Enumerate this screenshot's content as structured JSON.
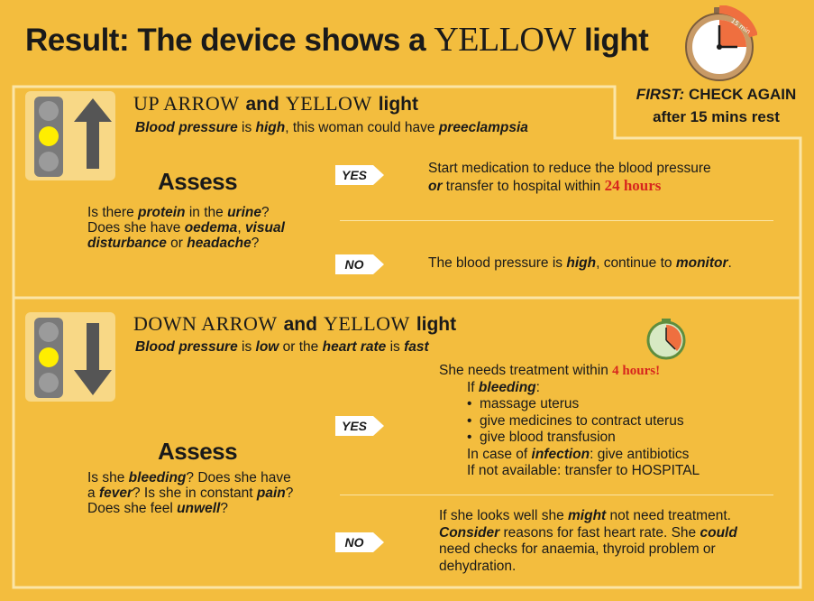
{
  "title": {
    "lead": "Result: The device shows a",
    "color_word": "YELLOW",
    "tail": "light"
  },
  "first_note": {
    "label": "FIRST:",
    "line1": "CHECK AGAIN",
    "line2": "after 15 mins rest"
  },
  "timer_15": {
    "mark": "15 min"
  },
  "colors": {
    "background": "#f3bd3e",
    "panel_light": "#f8d886",
    "light_yellow": "#ffee00",
    "light_gray": "#7a7a7a",
    "highlight_red": "#d7261e",
    "clock_orange": "#ef6f3f",
    "clock_green": "#5f8d3e"
  },
  "up": {
    "heading": {
      "arrow_word": "UP ARROW",
      "and": "and",
      "color_word": "YELLOW",
      "light": "light"
    },
    "subline": {
      "p1": "Blood pressure",
      "p2": " is ",
      "p3": "high",
      "p4": ", this woman could have ",
      "p5": "preeclampsia"
    },
    "assess": "Assess",
    "question": {
      "a1": "Is there ",
      "a2": "protein",
      "a3": " in the ",
      "a4": "urine",
      "a5": "?",
      "b1": "Does she have ",
      "b2": "oedema",
      "b3": ", ",
      "b4": "visual",
      "c1": "disturbance",
      "c2": " or ",
      "c3": "headache",
      "c4": "?"
    },
    "yes_label": "YES",
    "yes": {
      "l1": "Start medication to reduce the blood pressure",
      "or": "or",
      "l2": " transfer to hospital within ",
      "hours": "24 hours"
    },
    "no_label": "NO",
    "no": {
      "p1": "The blood pressure is ",
      "high": "high",
      "p2": ", continue to ",
      "monitor": "monitor",
      "p3": "."
    }
  },
  "down": {
    "heading": {
      "arrow_word": "DOWN ARROW",
      "and": "and",
      "color_word": "YELLOW",
      "light": "light"
    },
    "subline": {
      "p1": "Blood pressure",
      "p2": " is ",
      "p3": "low",
      "p4": " or the ",
      "p5": "heart rate",
      "p6": " is ",
      "p7": "fast"
    },
    "assess": "Assess",
    "question": {
      "a1": "Is she ",
      "a2": "bleeding",
      "a3": "? Does she have",
      "b1": "a ",
      "b2": "fever",
      "b3": "? Is she in constant ",
      "b4": "pain",
      "b5": "?",
      "c1": "Does she feel ",
      "c2": "unwell",
      "c3": "?"
    },
    "yes_label": "YES",
    "yes": {
      "intro": "She needs treatment within ",
      "hours": "4 hours!",
      "if1": "If ",
      "bleeding": "bleeding",
      "colon": ":",
      "bullets": [
        "massage uterus",
        "give medicines to contract uterus",
        "give blood transfusion"
      ],
      "inf1": "In case of ",
      "infection": "infection",
      "inf2": ": give antibiotics",
      "notavail": "If not available: transfer to HOSPITAL"
    },
    "no_label": "NO",
    "no": {
      "a1": "If she looks well she ",
      "might": "might",
      "a2": " not need treatment.",
      "consider": "Consider",
      "b1": " reasons for fast heart rate. She ",
      "could": "could",
      "c1": "need checks for anaemia, thyroid problem or",
      "d1": "dehydration."
    }
  }
}
